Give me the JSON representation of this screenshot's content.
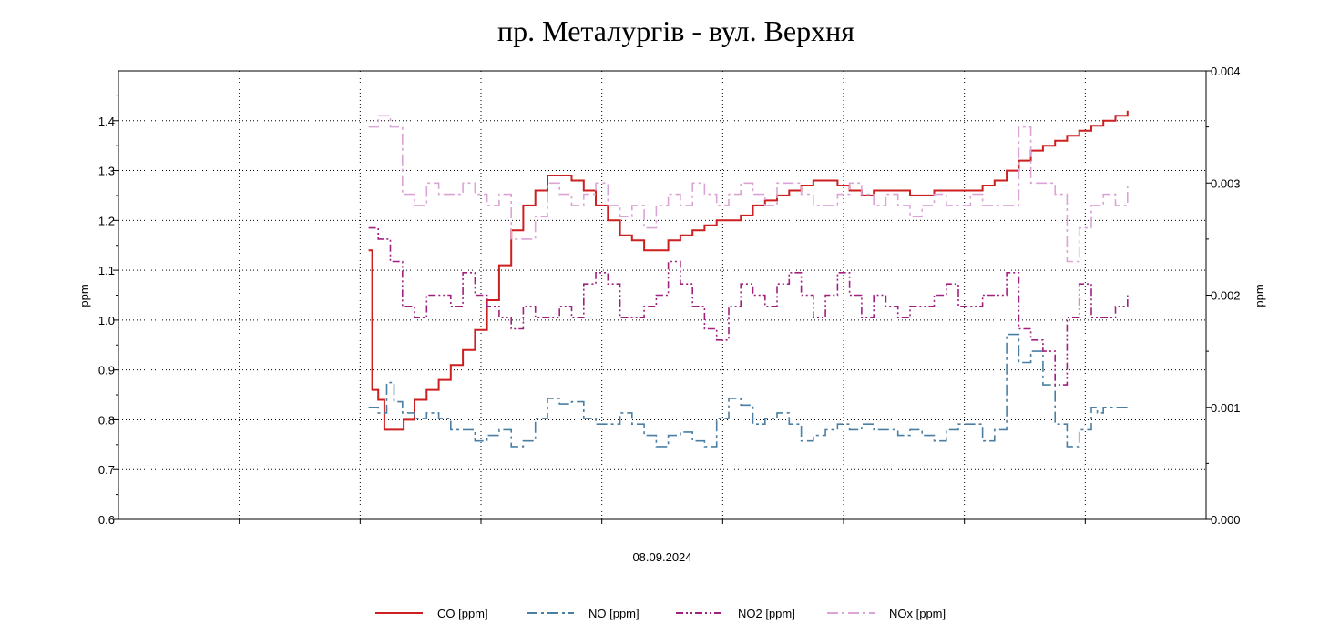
{
  "chart_data": {
    "type": "line",
    "title": "пр. Металургів - вул. Верхня",
    "xlabel": "08.09.2024",
    "ylabel_left": "ppm",
    "ylabel_right": "ppm",
    "ylim_left": [
      0.6,
      1.5
    ],
    "ylim_right": [
      0.0,
      0.004
    ],
    "yticks_left": [
      "0.6",
      "0.7",
      "0.8",
      "0.9",
      "1.0",
      "1.1",
      "1.2",
      "1.3",
      "1.4"
    ],
    "yticks_right": [
      "0.000",
      "0.001",
      "0.002",
      "0.003",
      "0.004"
    ],
    "x_range": [
      0,
      9
    ],
    "grid": true,
    "legend_position": "bottom",
    "series": [
      {
        "name": "CO [ppm]",
        "axis": "left",
        "color": "#cc1f1f",
        "dash": "solid",
        "x": [
          2.07,
          2.1,
          2.15,
          2.2,
          2.28,
          2.36,
          2.45,
          2.55,
          2.65,
          2.75,
          2.85,
          2.95,
          3.05,
          3.15,
          3.25,
          3.35,
          3.45,
          3.55,
          3.65,
          3.75,
          3.85,
          3.95,
          4.05,
          4.15,
          4.25,
          4.35,
          4.45,
          4.55,
          4.65,
          4.75,
          4.85,
          4.95,
          5.05,
          5.15,
          5.25,
          5.35,
          5.45,
          5.55,
          5.65,
          5.75,
          5.85,
          5.95,
          6.05,
          6.15,
          6.25,
          6.35,
          6.45,
          6.55,
          6.65,
          6.75,
          6.85,
          6.95,
          7.05,
          7.15,
          7.25,
          7.35,
          7.45,
          7.55,
          7.65,
          7.75,
          7.85,
          7.95,
          8.05,
          8.15,
          8.25,
          8.35
        ],
        "y": [
          1.14,
          0.86,
          0.84,
          0.78,
          0.78,
          0.8,
          0.84,
          0.86,
          0.88,
          0.91,
          0.94,
          0.98,
          1.04,
          1.11,
          1.18,
          1.23,
          1.26,
          1.29,
          1.29,
          1.28,
          1.26,
          1.23,
          1.2,
          1.17,
          1.16,
          1.14,
          1.14,
          1.16,
          1.17,
          1.18,
          1.19,
          1.2,
          1.2,
          1.21,
          1.23,
          1.24,
          1.25,
          1.26,
          1.27,
          1.28,
          1.28,
          1.27,
          1.26,
          1.25,
          1.26,
          1.26,
          1.26,
          1.25,
          1.25,
          1.26,
          1.26,
          1.26,
          1.26,
          1.27,
          1.28,
          1.3,
          1.32,
          1.34,
          1.35,
          1.36,
          1.37,
          1.38,
          1.39,
          1.4,
          1.41,
          1.42
        ]
      },
      {
        "name": "NO [ppm]",
        "axis": "right",
        "color": "#4a7fa3",
        "dash": "12,4,3,4",
        "x": [
          2.07,
          2.15,
          2.22,
          2.28,
          2.35,
          2.45,
          2.55,
          2.65,
          2.75,
          2.85,
          2.95,
          3.05,
          3.15,
          3.25,
          3.35,
          3.45,
          3.55,
          3.65,
          3.75,
          3.85,
          3.95,
          4.05,
          4.15,
          4.25,
          4.35,
          4.45,
          4.55,
          4.65,
          4.75,
          4.85,
          4.95,
          5.05,
          5.15,
          5.25,
          5.35,
          5.45,
          5.55,
          5.65,
          5.75,
          5.85,
          5.95,
          6.05,
          6.15,
          6.25,
          6.35,
          6.45,
          6.55,
          6.65,
          6.75,
          6.85,
          6.95,
          7.05,
          7.15,
          7.25,
          7.35,
          7.45,
          7.55,
          7.65,
          7.75,
          7.85,
          7.95,
          8.05,
          8.1,
          8.15,
          8.25,
          8.35
        ],
        "y": [
          0.001,
          0.00095,
          0.00122,
          0.00105,
          0.00095,
          0.0009,
          0.00095,
          0.0009,
          0.0008,
          0.0008,
          0.0007,
          0.00075,
          0.0008,
          0.00065,
          0.0007,
          0.0009,
          0.00108,
          0.00103,
          0.00105,
          0.0009,
          0.00085,
          0.00085,
          0.00095,
          0.00085,
          0.00075,
          0.00065,
          0.00075,
          0.00078,
          0.0007,
          0.00065,
          0.0009,
          0.00108,
          0.00102,
          0.00085,
          0.0009,
          0.00095,
          0.00085,
          0.0007,
          0.00075,
          0.0008,
          0.00085,
          0.0008,
          0.00085,
          0.0008,
          0.0008,
          0.00075,
          0.0008,
          0.00075,
          0.0007,
          0.0008,
          0.00085,
          0.00085,
          0.0007,
          0.0008,
          0.00165,
          0.0014,
          0.0015,
          0.0012,
          0.00085,
          0.00065,
          0.0008,
          0.001,
          0.00095,
          0.001,
          0.001,
          0.001
        ]
      },
      {
        "name": "NO2 [ppm]",
        "axis": "right",
        "color": "#a0207f",
        "dash": "8,3,2,3,2,3",
        "x": [
          2.07,
          2.15,
          2.25,
          2.35,
          2.45,
          2.55,
          2.65,
          2.75,
          2.85,
          2.95,
          3.05,
          3.15,
          3.25,
          3.35,
          3.45,
          3.55,
          3.65,
          3.75,
          3.85,
          3.95,
          4.05,
          4.15,
          4.25,
          4.35,
          4.45,
          4.55,
          4.65,
          4.75,
          4.85,
          4.95,
          5.05,
          5.15,
          5.25,
          5.35,
          5.45,
          5.55,
          5.65,
          5.75,
          5.85,
          5.95,
          6.05,
          6.15,
          6.25,
          6.35,
          6.45,
          6.55,
          6.65,
          6.75,
          6.85,
          6.95,
          7.05,
          7.15,
          7.25,
          7.35,
          7.45,
          7.55,
          7.65,
          7.75,
          7.85,
          7.95,
          8.05,
          8.15,
          8.25,
          8.35
        ],
        "y": [
          0.0026,
          0.0025,
          0.0023,
          0.0019,
          0.0018,
          0.002,
          0.002,
          0.0019,
          0.0022,
          0.002,
          0.0019,
          0.0018,
          0.0017,
          0.0019,
          0.0018,
          0.0018,
          0.0019,
          0.0018,
          0.0021,
          0.0022,
          0.0021,
          0.0018,
          0.0018,
          0.0019,
          0.002,
          0.0023,
          0.0021,
          0.0019,
          0.0017,
          0.0016,
          0.0019,
          0.0021,
          0.002,
          0.0019,
          0.0021,
          0.0022,
          0.002,
          0.0018,
          0.002,
          0.0022,
          0.002,
          0.0018,
          0.002,
          0.0019,
          0.0018,
          0.0019,
          0.0019,
          0.002,
          0.0021,
          0.0019,
          0.0019,
          0.002,
          0.002,
          0.0022,
          0.0017,
          0.0016,
          0.0015,
          0.0012,
          0.0018,
          0.0021,
          0.0018,
          0.0018,
          0.0019,
          0.002
        ]
      },
      {
        "name": "NOx [ppm]",
        "axis": "right",
        "color": "#dba4d6",
        "dash": "12,4,3,4",
        "x": [
          2.07,
          2.15,
          2.25,
          2.35,
          2.45,
          2.55,
          2.65,
          2.75,
          2.85,
          2.95,
          3.05,
          3.15,
          3.25,
          3.35,
          3.45,
          3.55,
          3.65,
          3.75,
          3.85,
          3.95,
          4.05,
          4.15,
          4.25,
          4.35,
          4.45,
          4.55,
          4.65,
          4.75,
          4.85,
          4.95,
          5.05,
          5.15,
          5.25,
          5.35,
          5.45,
          5.55,
          5.65,
          5.75,
          5.85,
          5.95,
          6.05,
          6.15,
          6.25,
          6.35,
          6.45,
          6.55,
          6.65,
          6.75,
          6.85,
          6.95,
          7.05,
          7.15,
          7.25,
          7.35,
          7.45,
          7.55,
          7.65,
          7.75,
          7.85,
          7.95,
          8.05,
          8.15,
          8.25,
          8.35
        ],
        "y": [
          0.0035,
          0.0036,
          0.0035,
          0.0029,
          0.0028,
          0.003,
          0.0029,
          0.0029,
          0.003,
          0.0029,
          0.0028,
          0.0029,
          0.0025,
          0.0025,
          0.0027,
          0.003,
          0.0029,
          0.0028,
          0.0029,
          0.003,
          0.0028,
          0.0027,
          0.0028,
          0.0026,
          0.0028,
          0.0029,
          0.0028,
          0.003,
          0.0029,
          0.0028,
          0.0029,
          0.003,
          0.0029,
          0.0028,
          0.003,
          0.003,
          0.0029,
          0.0028,
          0.0028,
          0.0029,
          0.003,
          0.0029,
          0.0028,
          0.0029,
          0.0028,
          0.0027,
          0.0028,
          0.0029,
          0.0028,
          0.0028,
          0.0029,
          0.0028,
          0.0028,
          0.0028,
          0.0035,
          0.003,
          0.003,
          0.0029,
          0.0023,
          0.0026,
          0.0028,
          0.0029,
          0.0028,
          0.003
        ]
      }
    ]
  }
}
